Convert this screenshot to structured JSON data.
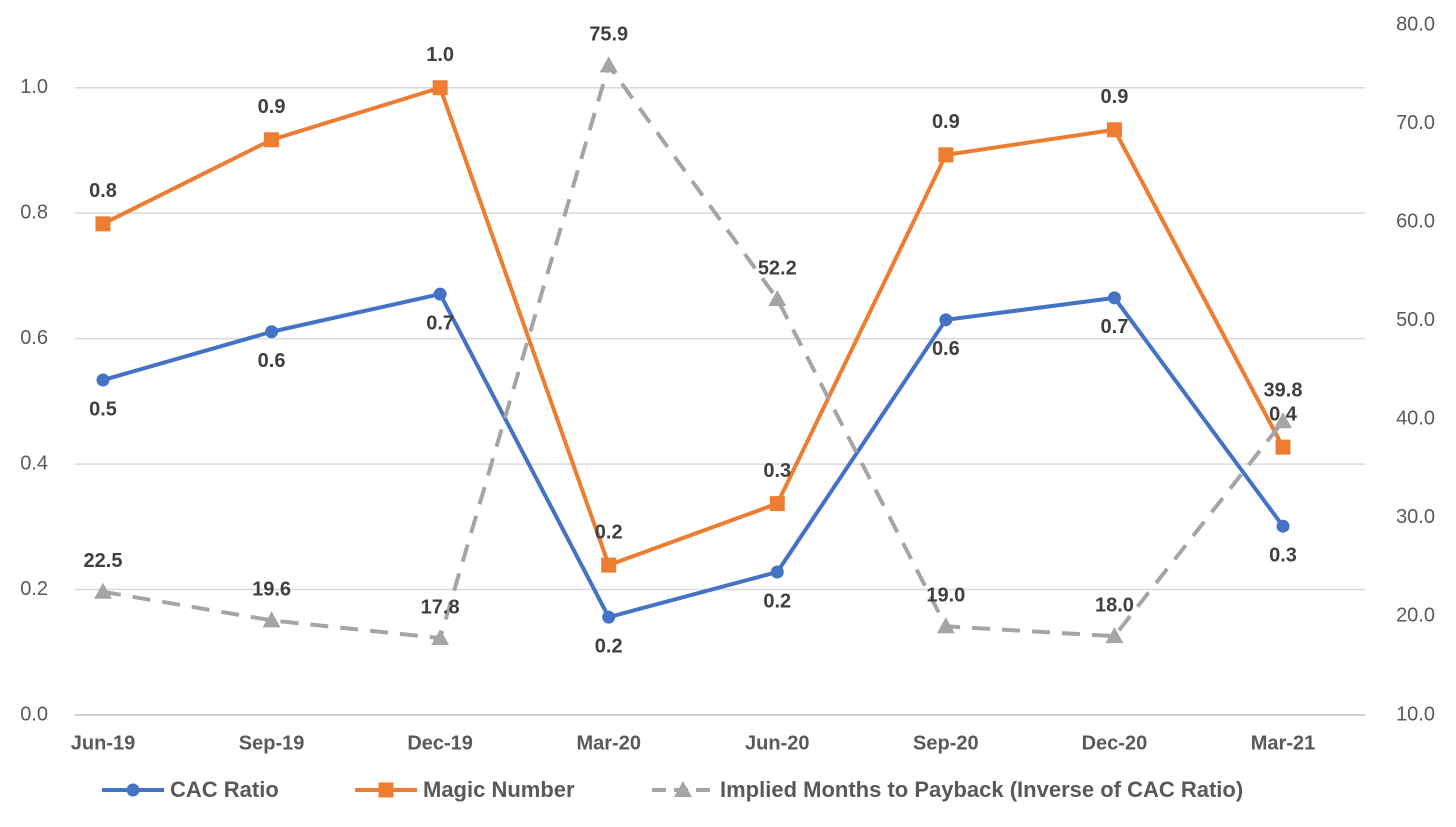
{
  "chart_data": {
    "type": "line",
    "categories": [
      "Jun-19",
      "Sep-19",
      "Dec-19",
      "Mar-20",
      "Jun-20",
      "Sep-20",
      "Dec-20",
      "Mar-21"
    ],
    "ylim": [
      0,
      1.1
    ],
    "yticks": [
      {
        "value": 0,
        "label": "0.0"
      },
      0.2,
      0.4,
      0.6,
      0.8,
      {
        "value": 1,
        "label": "1.0"
      }
    ],
    "y2lim": [
      10,
      80
    ],
    "y2ticks": [
      {
        "value": 10,
        "label": "10.0"
      },
      {
        "value": 20,
        "label": "20.0"
      },
      {
        "value": 30,
        "label": "30.0"
      },
      {
        "value": 40,
        "label": "40.0"
      },
      {
        "value": 50,
        "label": "50.0"
      },
      {
        "value": 60,
        "label": "60.0"
      },
      {
        "value": 70,
        "label": "70.0"
      },
      {
        "value": 80,
        "label": "80.0"
      }
    ],
    "grid": true,
    "legend": "bottom",
    "series": [
      {
        "name": "CAC Ratio",
        "color": "#4472c4",
        "marker": "circle",
        "dashed": false,
        "values": [
          0.534,
          0.611,
          0.671,
          0.156,
          0.228,
          0.63,
          0.665,
          0.301
        ],
        "value_labels": [
          "0.5",
          "0.6",
          "0.7",
          "0.2",
          "0.2",
          "0.6",
          "0.7",
          "0.3"
        ]
      },
      {
        "name": "Magic Number",
        "color": "#ed7d31",
        "marker": "square",
        "dashed": false,
        "values": [
          0.783,
          0.917,
          1.0,
          0.239,
          0.337,
          0.893,
          0.933,
          0.427
        ],
        "value_labels": [
          "0.8",
          "0.9",
          "1.0",
          "0.2",
          "0.3",
          "0.9",
          "0.9",
          "0.4"
        ]
      },
      {
        "name": "Implied Months to Payback (Inverse of CAC Ratio)",
        "color": "#a5a5a5",
        "marker": "triangle",
        "dashed": true,
        "axis": "y2",
        "values": [
          22.5,
          19.6,
          17.8,
          75.9,
          52.2,
          19.0,
          18.0,
          39.8
        ],
        "value_labels": [
          "22.5",
          "19.6",
          "17.8",
          "75.9",
          "52.2",
          "19.0",
          "18.0",
          "39.8"
        ]
      }
    ]
  }
}
